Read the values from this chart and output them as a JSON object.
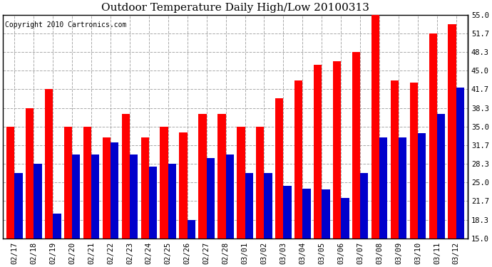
{
  "title": "Outdoor Temperature Daily High/Low 20100313",
  "copyright": "Copyright 2010 Cartronics.com",
  "dates": [
    "02/17",
    "02/18",
    "02/19",
    "02/20",
    "02/21",
    "02/22",
    "02/23",
    "02/24",
    "02/25",
    "02/26",
    "02/27",
    "02/28",
    "03/01",
    "03/02",
    "03/03",
    "03/04",
    "03/05",
    "03/06",
    "03/07",
    "03/08",
    "03/09",
    "03/10",
    "03/11",
    "03/12"
  ],
  "highs": [
    35.0,
    38.3,
    41.7,
    35.0,
    35.0,
    33.0,
    37.2,
    33.0,
    35.0,
    34.0,
    37.2,
    37.2,
    35.0,
    35.0,
    40.0,
    43.3,
    46.0,
    46.7,
    48.3,
    55.0,
    43.3,
    42.8,
    51.7,
    53.3
  ],
  "lows": [
    26.7,
    28.3,
    19.4,
    30.0,
    30.0,
    32.2,
    30.0,
    27.8,
    28.3,
    18.3,
    29.4,
    30.0,
    26.7,
    26.7,
    24.4,
    23.9,
    23.7,
    22.2,
    26.7,
    33.0,
    33.0,
    33.8,
    37.2,
    42.0
  ],
  "high_color": "#ff0000",
  "low_color": "#0000cc",
  "bg_color": "#ffffff",
  "grid_color": "#aaaaaa",
  "ymin": 15.0,
  "ymax": 55.0,
  "yticks": [
    15.0,
    18.3,
    21.7,
    25.0,
    28.3,
    31.7,
    35.0,
    38.3,
    41.7,
    45.0,
    48.3,
    51.7,
    55.0
  ],
  "title_fontsize": 11,
  "copyright_fontsize": 7,
  "tick_fontsize": 7.5,
  "bar_width": 0.42
}
